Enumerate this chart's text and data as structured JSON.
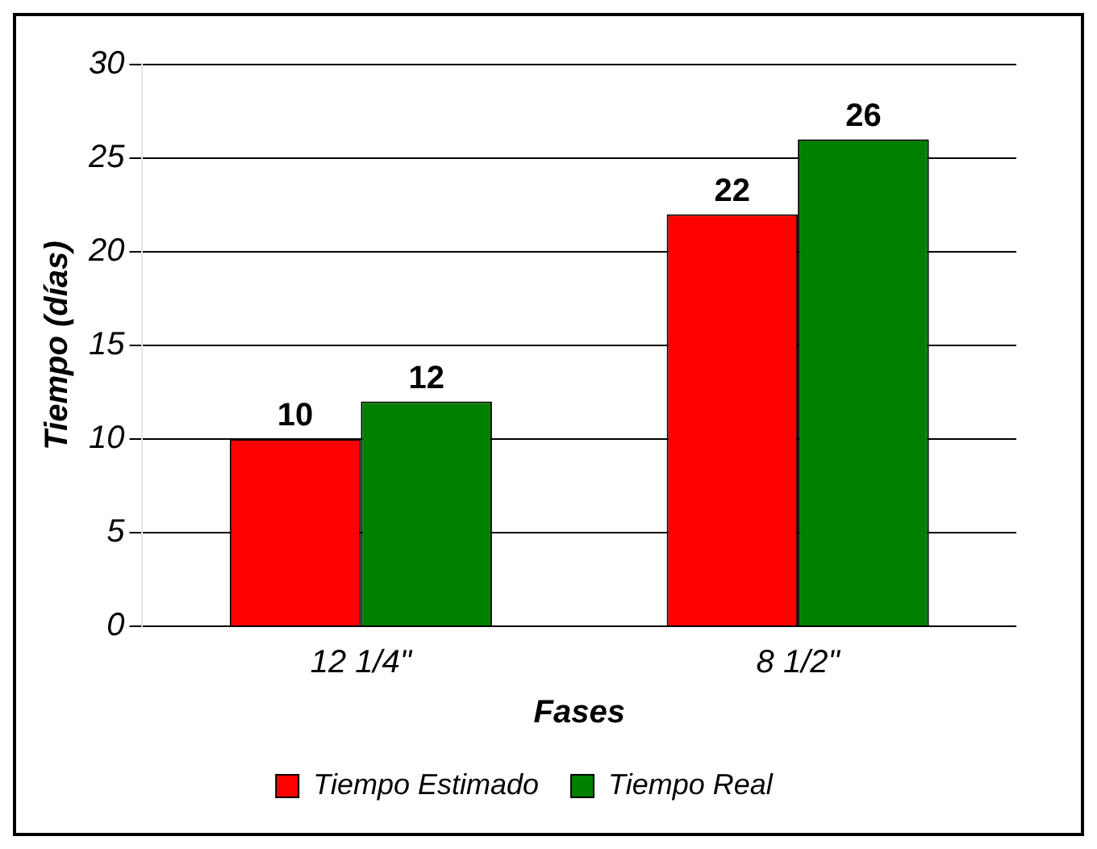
{
  "chart_data": {
    "type": "bar",
    "xlabel": "Fases",
    "ylabel": "Tiempo (días)",
    "categories": [
      "12 1/4\"",
      "8 1/2\""
    ],
    "series": [
      {
        "name": "Tiempo Estimado",
        "color": "#ff0000",
        "values": [
          10,
          22
        ]
      },
      {
        "name": "Tiempo Real",
        "color": "#008000",
        "values": [
          12,
          26
        ]
      }
    ],
    "ylim": [
      0,
      30
    ],
    "yticks": [
      0,
      5,
      10,
      15,
      20,
      25,
      30
    ],
    "grid": "y",
    "legend": "bottom",
    "data_labels": true
  }
}
